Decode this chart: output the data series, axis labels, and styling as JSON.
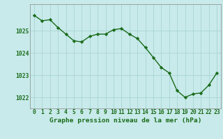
{
  "x": [
    0,
    1,
    2,
    3,
    4,
    5,
    6,
    7,
    8,
    9,
    10,
    11,
    12,
    13,
    14,
    15,
    16,
    17,
    18,
    19,
    20,
    21,
    22,
    23
  ],
  "y": [
    1025.7,
    1025.45,
    1025.5,
    1025.15,
    1024.85,
    1024.55,
    1024.5,
    1024.75,
    1024.85,
    1024.85,
    1025.05,
    1025.1,
    1024.85,
    1024.65,
    1024.25,
    1023.8,
    1023.35,
    1023.1,
    1022.3,
    1022.0,
    1022.15,
    1022.2,
    1022.55,
    1023.1
  ],
  "line_color": "#1a6b1a",
  "marker": "D",
  "marker_size": 2.2,
  "background_color": "#c8eaea",
  "grid_color": "#aad4d4",
  "title": "Graphe pression niveau de la mer (hPa)",
  "ylim": [
    1021.5,
    1026.2
  ],
  "yticks": [
    1022,
    1023,
    1024,
    1025
  ],
  "xticks": [
    0,
    1,
    2,
    3,
    4,
    5,
    6,
    7,
    8,
    9,
    10,
    11,
    12,
    13,
    14,
    15,
    16,
    17,
    18,
    19,
    20,
    21,
    22,
    23
  ],
  "tick_color": "#1a6b1a",
  "title_fontsize": 6.8,
  "tick_fontsize": 5.8,
  "linewidth": 1.0,
  "spine_color": "#888888"
}
